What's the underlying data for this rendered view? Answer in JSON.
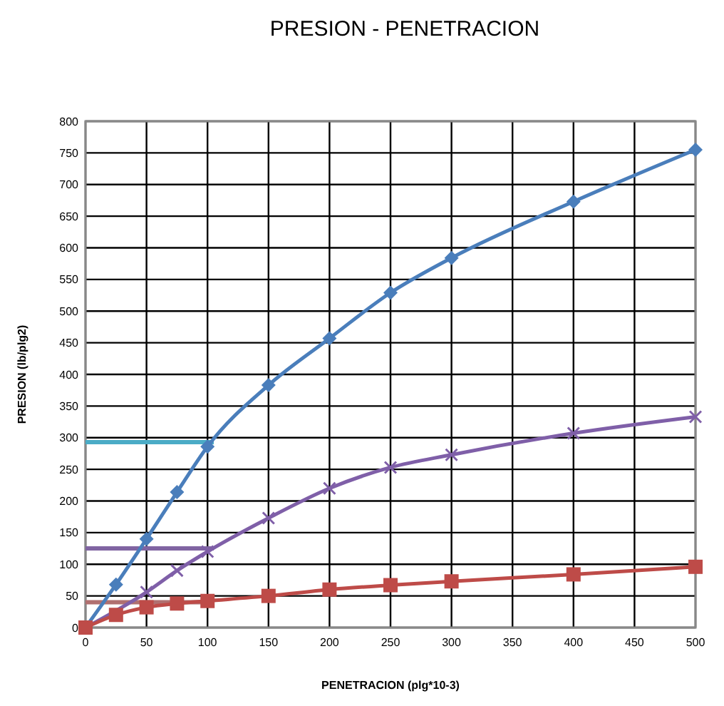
{
  "chart_data": {
    "type": "line",
    "title": "PRESION  - PENETRACION",
    "xlabel": "PENETRACION (plg*10-3)",
    "ylabel": "PRESION (lb/plg2)",
    "x": [
      0,
      25,
      50,
      75,
      100,
      150,
      200,
      250,
      300,
      400,
      500
    ],
    "series": [
      {
        "color": "#4a7ebb",
        "marker": "diamond",
        "values": [
          0,
          68,
          140,
          214,
          286,
          383,
          457,
          529,
          584,
          673,
          755
        ]
      },
      {
        "color": "#7f5fa8",
        "marker": "cross",
        "values": [
          0,
          null,
          56,
          90,
          120,
          173,
          220,
          253,
          273,
          307,
          333
        ]
      },
      {
        "color": "#be4b48",
        "marker": "square",
        "values": [
          0,
          20,
          32,
          38,
          42,
          50,
          60,
          67,
          73,
          84,
          96
        ]
      }
    ],
    "xlim": [
      0,
      500
    ],
    "xticks": [
      0,
      50,
      100,
      150,
      200,
      250,
      300,
      350,
      400,
      450,
      500
    ],
    "ylim": [
      0,
      800
    ],
    "yticks": [
      0,
      50,
      100,
      150,
      200,
      250,
      300,
      350,
      400,
      450,
      500,
      550,
      600,
      650,
      700,
      750,
      800
    ],
    "grid": true,
    "ref_lines": [
      {
        "axis": "y",
        "value": 293,
        "color": "#4bacc6"
      },
      {
        "axis": "y",
        "value": 125,
        "color": "#8064a2"
      },
      {
        "axis": "y",
        "value": 40,
        "color": "#b07070"
      }
    ]
  }
}
